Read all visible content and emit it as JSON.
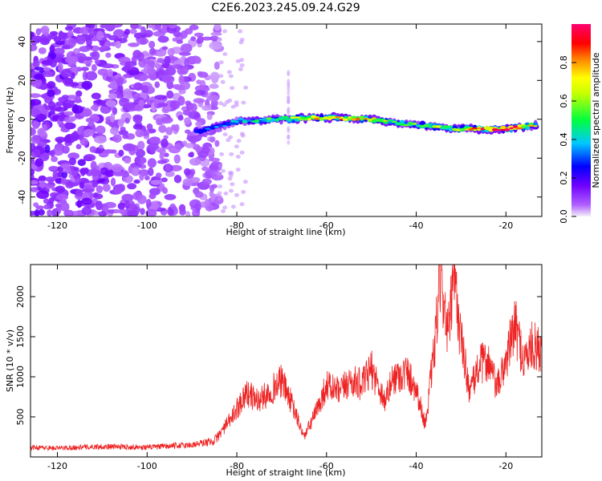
{
  "title": "C2E6.2023.245.09.24.G29",
  "colorbar": {
    "label": "Normalized spectral amplitude",
    "ticks": [
      0.0,
      0.2,
      0.4,
      0.6,
      0.8
    ],
    "range": [
      0,
      1
    ],
    "colormap": [
      "#f0f0f0",
      "#a000ff",
      "#0000ff",
      "#00c8ff",
      "#00ff00",
      "#ffff00",
      "#ff8000",
      "#ff0000",
      "#ff0080"
    ]
  },
  "chart_data": [
    {
      "type": "heatmap",
      "xlabel": "Height of straight line (km)",
      "ylabel": "Frequency (Hz)",
      "xlim": [
        -126,
        -12
      ],
      "ylim": [
        -50,
        49
      ],
      "xticks": [
        -120,
        -100,
        -80,
        -60,
        -40,
        -20
      ],
      "yticks": [
        -40,
        -20,
        0,
        20,
        40
      ],
      "noise_region": {
        "x": [
          -126,
          -84
        ],
        "y": [
          -50,
          49
        ]
      },
      "signal_ridge": {
        "x": [
          -88,
          -80,
          -70,
          -60,
          -50,
          -40,
          -30,
          -20,
          -13
        ],
        "frequency": [
          -6,
          -1,
          0,
          1,
          0,
          -3,
          -5,
          -5,
          -3
        ],
        "peak_amplitude": [
          0.3,
          0.4,
          0.55,
          0.85,
          0.7,
          0.5,
          0.7,
          0.95,
          0.6
        ]
      },
      "colorbar_label": "Normalized spectral amplitude"
    },
    {
      "type": "line",
      "xlabel": "Height of straight line (km)",
      "ylabel": "SNR (10 * v/v)",
      "xlim": [
        -126,
        -12
      ],
      "ylim": [
        0,
        2400
      ],
      "xticks": [
        -120,
        -100,
        -80,
        -60,
        -40,
        -20
      ],
      "yticks": [
        500,
        1000,
        1500,
        2000
      ],
      "series": [
        {
          "color": "#ee2222",
          "x": [
            -126,
            -120,
            -110,
            -100,
            -90,
            -85,
            -81,
            -78,
            -75,
            -72,
            -70,
            -68,
            -65,
            -62,
            -60,
            -57,
            -55,
            -52,
            -50,
            -47,
            -45,
            -42,
            -40,
            -38,
            -36,
            -34.5,
            -33,
            -31.5,
            -30,
            -28,
            -26,
            -24,
            -22,
            -20,
            -18,
            -16,
            -14,
            -12
          ],
          "y": [
            120,
            110,
            130,
            120,
            150,
            200,
            500,
            800,
            700,
            850,
            950,
            700,
            250,
            600,
            900,
            800,
            950,
            900,
            1100,
            700,
            1000,
            1050,
            850,
            400,
            1300,
            2330,
            1500,
            2200,
            1450,
            800,
            1150,
            1200,
            850,
            1200,
            1650,
            1200,
            1400,
            1300
          ]
        }
      ]
    }
  ]
}
